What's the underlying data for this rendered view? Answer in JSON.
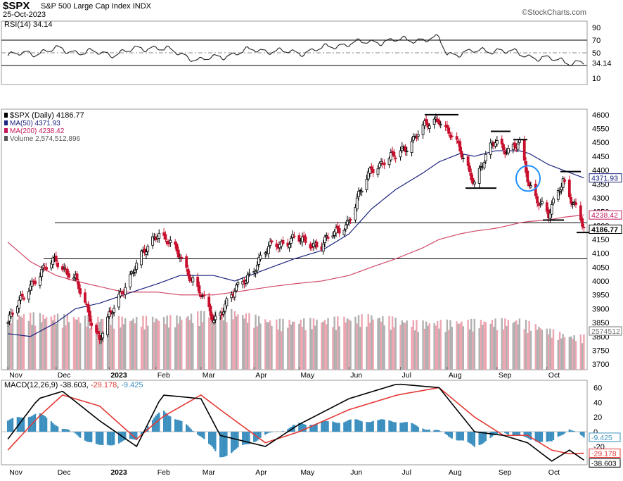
{
  "header": {
    "symbol": "$SPX",
    "name": "S&P 500 Large Cap Index",
    "exchange": "INDX",
    "date": "25-Oct-2023",
    "brand": "©StockCharts.com"
  },
  "rsi_panel": {
    "label": "RSI(14) 34.14",
    "ticks": [
      "90",
      "70",
      "50",
      "34.14",
      "10"
    ]
  },
  "price_panel": {
    "legend": [
      {
        "text": "$SPX (Daily) 4186.77",
        "color": "#000000"
      },
      {
        "text": "MA(50) 4371.93",
        "color": "#1a237e"
      },
      {
        "text": "MA(200) 4238.42",
        "color": "#c2185b"
      },
      {
        "text": "Volume 2,574,512,896",
        "color": "#555555"
      }
    ],
    "yticks": [
      "4600",
      "4550",
      "4500",
      "4450",
      "4400",
      "4350",
      "4300",
      "4250",
      "4200",
      "4150",
      "4100",
      "4050",
      "4000",
      "3950",
      "3900",
      "3850",
      "3800",
      "3750",
      "3700"
    ],
    "value_tags": [
      {
        "text": "4371.93",
        "color": "#1a237e",
        "bold": false
      },
      {
        "text": "4238.42",
        "color": "#c2185b",
        "bold": false
      },
      {
        "text": "4186.77",
        "color": "#000000",
        "bold": true
      },
      {
        "text": "2574512",
        "color": "#777777",
        "bold": false
      }
    ],
    "months": [
      "Nov",
      "Dec",
      "2023",
      "Feb",
      "Mar",
      "Apr",
      "May",
      "Jun",
      "Jul",
      "Aug",
      "Sep",
      "Oct"
    ]
  },
  "macd_panel": {
    "label_prefix": "MACD(12,26,9)",
    "macd_value": "-38.603",
    "signal_value": "-29.178",
    "hist_value": "-9.425",
    "yticks": [
      "60",
      "40",
      "20",
      "0",
      "-20"
    ],
    "value_tags": [
      "-9.425",
      "-29.178",
      "-38.603"
    ]
  },
  "colors": {
    "up": "#000000",
    "down": "#c8102e",
    "ma50": "#1a237e",
    "ma200": "#d04a6a",
    "volume_up": "#b0b0b0",
    "volume_down": "#eca5b0",
    "hist": "#3b8fbf",
    "macd_line": "#000000",
    "signal_line": "#e53935",
    "annotation_circle": "#1e90ff"
  },
  "chart_data": [
    {
      "type": "line",
      "title": "RSI(14)",
      "ylim": [
        0,
        100
      ],
      "reference_lines": [
        70,
        50,
        30
      ],
      "x": [
        "2022-11-01",
        "2022-12-01",
        "2023-01-03",
        "2023-02-01",
        "2023-03-01",
        "2023-04-03",
        "2023-05-01",
        "2023-06-01",
        "2023-07-03",
        "2023-07-27",
        "2023-08-01",
        "2023-09-01",
        "2023-10-02",
        "2023-10-25"
      ],
      "series": [
        {
          "name": "RSI(14)",
          "values": [
            45,
            55,
            48,
            60,
            38,
            55,
            50,
            65,
            70,
            72,
            48,
            55,
            40,
            34.14
          ]
        }
      ]
    },
    {
      "type": "line",
      "title": "$SPX (Daily)",
      "ylim": [
        3680,
        4620
      ],
      "x": [
        "2022-11-01",
        "2022-11-15",
        "2022-12-01",
        "2022-12-13",
        "2022-12-28",
        "2023-01-12",
        "2023-02-02",
        "2023-02-16",
        "2023-03-09",
        "2023-03-22",
        "2023-04-14",
        "2023-04-28",
        "2023-05-15",
        "2023-06-01",
        "2023-06-15",
        "2023-06-30",
        "2023-07-17",
        "2023-07-27",
        "2023-08-09",
        "2023-08-18",
        "2023-08-31",
        "2023-09-08",
        "2023-09-15",
        "2023-09-21",
        "2023-10-03",
        "2023-10-12",
        "2023-10-25"
      ],
      "series": [
        {
          "name": "$SPX",
          "values": [
            3850,
            3990,
            4080,
            4000,
            3790,
            3980,
            4180,
            4090,
            3860,
            3960,
            4130,
            4150,
            4130,
            4220,
            4410,
            4450,
            4550,
            4590,
            4470,
            4360,
            4510,
            4470,
            4490,
            4350,
            4230,
            4370,
            4186.77
          ]
        },
        {
          "name": "MA(50)",
          "values": [
            3810,
            3800,
            3850,
            3900,
            3920,
            3950,
            3990,
            4020,
            4020,
            4000,
            4050,
            4080,
            4110,
            4170,
            4260,
            4330,
            4390,
            4430,
            4460,
            4450,
            4470,
            4470,
            4470,
            4460,
            4420,
            4400,
            4371.93
          ]
        },
        {
          "name": "MA(200)",
          "values": [
            4140,
            4070,
            4020,
            4000,
            3980,
            3960,
            3960,
            3950,
            3950,
            3960,
            3980,
            3990,
            4000,
            4020,
            4050,
            4080,
            4120,
            4150,
            4170,
            4180,
            4190,
            4200,
            4210,
            4215,
            4220,
            4230,
            4238.42
          ]
        }
      ],
      "annotations": [
        {
          "kind": "horizontal_line",
          "value": 4210
        },
        {
          "kind": "horizontal_line",
          "value": 4080
        },
        {
          "kind": "resistance_mark",
          "value": 4600
        },
        {
          "kind": "resistance_mark",
          "value": 4540
        },
        {
          "kind": "resistance_mark",
          "value": 4510
        },
        {
          "kind": "support_mark",
          "value": 4335
        },
        {
          "kind": "resistance_mark",
          "value": 4395
        },
        {
          "kind": "support_mark",
          "value": 4220
        },
        {
          "kind": "support_mark",
          "value": 4175
        },
        {
          "kind": "circle",
          "value": 4370
        }
      ]
    },
    {
      "type": "bar",
      "title": "Volume",
      "x": [
        "2022-11",
        "2022-12",
        "2023-01",
        "2023-02",
        "2023-03",
        "2023-04",
        "2023-05",
        "2023-06",
        "2023-07",
        "2023-08",
        "2023-09",
        "2023-10"
      ],
      "series": [
        {
          "name": "Volume",
          "values": [
            4200000000.0,
            4000000000.0,
            3900000000.0,
            4000000000.0,
            4600000000.0,
            3700000000.0,
            3800000000.0,
            4100000000.0,
            3600000000.0,
            3700000000.0,
            3800000000.0,
            2574512896
          ]
        }
      ]
    },
    {
      "type": "line",
      "title": "MACD(12,26,9)",
      "ylim": [
        -45,
        70
      ],
      "x": [
        "2022-11-01",
        "2022-11-20",
        "2022-12-05",
        "2022-12-28",
        "2023-01-20",
        "2023-02-05",
        "2023-03-01",
        "2023-03-13",
        "2023-04-10",
        "2023-05-01",
        "2023-06-01",
        "2023-07-01",
        "2023-07-27",
        "2023-08-18",
        "2023-09-05",
        "2023-09-20",
        "2023-10-05",
        "2023-10-16",
        "2023-10-25"
      ],
      "series": [
        {
          "name": "MACD",
          "values": [
            -10,
            45,
            55,
            15,
            -20,
            50,
            45,
            -5,
            -20,
            10,
            45,
            65,
            60,
            0,
            -5,
            -15,
            -40,
            -25,
            -38.603
          ]
        },
        {
          "name": "Signal",
          "values": [
            -25,
            20,
            50,
            35,
            -10,
            20,
            50,
            30,
            -15,
            0,
            30,
            50,
            60,
            20,
            -5,
            -5,
            -25,
            -30,
            -29.178
          ]
        },
        {
          "name": "Histogram",
          "values": [
            15,
            25,
            5,
            -20,
            -10,
            30,
            -5,
            -35,
            -5,
            10,
            15,
            15,
            0,
            -20,
            0,
            -10,
            -15,
            5,
            -9.425
          ]
        }
      ]
    }
  ]
}
